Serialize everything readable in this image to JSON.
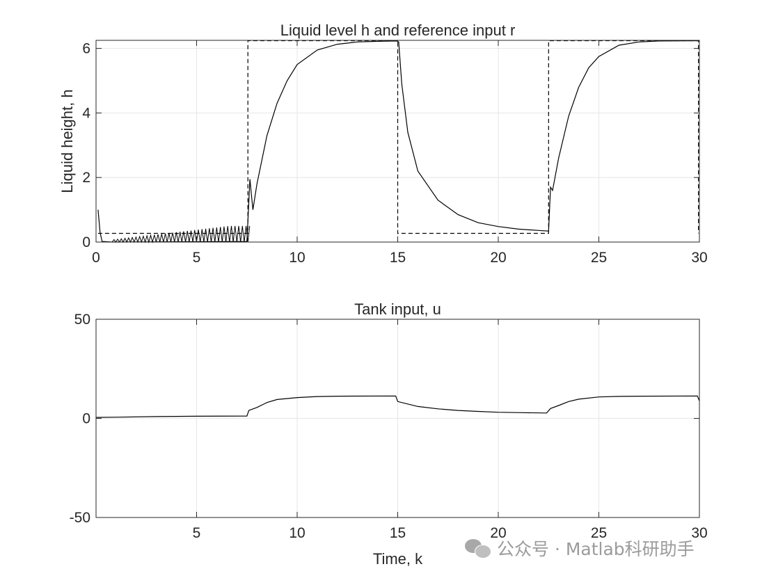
{
  "chart_data": [
    {
      "type": "line",
      "title": "Liquid level h and reference input r",
      "xlabel": "",
      "ylabel": "Liquid height, h",
      "xlim": [
        0,
        30
      ],
      "ylim": [
        0,
        6.25
      ],
      "xticks": [
        0,
        5,
        10,
        15,
        20,
        25,
        30
      ],
      "yticks": [
        0,
        2,
        4,
        6
      ],
      "grid": true,
      "series": [
        {
          "style": "solid",
          "color": "#000000",
          "points": [
            [
              0.1,
              1.0
            ],
            [
              0.2,
              0.3
            ],
            [
              0.3,
              0.02
            ],
            [
              0.8,
              0.0
            ],
            [
              7.5,
              0.02
            ],
            [
              7.65,
              1.95
            ],
            [
              7.8,
              1.0
            ],
            [
              8.0,
              1.8
            ],
            [
              8.5,
              3.3
            ],
            [
              9.0,
              4.3
            ],
            [
              9.5,
              5.0
            ],
            [
              10.0,
              5.5
            ],
            [
              11.0,
              5.95
            ],
            [
              12.0,
              6.13
            ],
            [
              13.0,
              6.2
            ],
            [
              14.0,
              6.22
            ],
            [
              14.95,
              6.23
            ],
            [
              15.05,
              6.2
            ],
            [
              15.2,
              4.9
            ],
            [
              15.5,
              3.4
            ],
            [
              16.0,
              2.2
            ],
            [
              17.0,
              1.3
            ],
            [
              18.0,
              0.85
            ],
            [
              19.0,
              0.6
            ],
            [
              20.0,
              0.48
            ],
            [
              21.0,
              0.4
            ],
            [
              22.0,
              0.36
            ],
            [
              22.5,
              0.34
            ],
            [
              22.6,
              1.7
            ],
            [
              22.7,
              1.6
            ],
            [
              23.0,
              2.6
            ],
            [
              23.5,
              3.9
            ],
            [
              24.0,
              4.8
            ],
            [
              24.5,
              5.4
            ],
            [
              25.0,
              5.75
            ],
            [
              26.0,
              6.1
            ],
            [
              27.0,
              6.2
            ],
            [
              28.0,
              6.23
            ],
            [
              30.0,
              6.24
            ]
          ]
        },
        {
          "style": "dashed",
          "color": "#000000",
          "points": [
            [
              0.1,
              0.27
            ],
            [
              7.55,
              0.27
            ],
            [
              7.55,
              6.24
            ],
            [
              15.0,
              6.24
            ],
            [
              15.0,
              0.27
            ],
            [
              22.5,
              0.27
            ],
            [
              22.5,
              6.24
            ],
            [
              29.95,
              6.24
            ],
            [
              29.95,
              0.27
            ]
          ]
        }
      ],
      "oscillation": {
        "x_range": [
          0.8,
          7.55
        ],
        "amplitude_max": 0.5,
        "count": 37
      }
    },
    {
      "type": "line",
      "title": "Tank input, u",
      "xlabel": "Time, k",
      "ylabel": "",
      "xlim": [
        0,
        30
      ],
      "ylim": [
        -50,
        50
      ],
      "xticks": [
        5,
        10,
        15,
        20,
        25,
        30
      ],
      "yticks": [
        -50,
        0,
        50
      ],
      "grid": true,
      "series": [
        {
          "style": "solid",
          "color": "#000000",
          "points": [
            [
              0.0,
              0.5
            ],
            [
              1.0,
              0.6
            ],
            [
              3.0,
              0.9
            ],
            [
              5.0,
              1.1
            ],
            [
              7.5,
              1.2
            ],
            [
              7.6,
              4.0
            ],
            [
              8.0,
              5.5
            ],
            [
              8.5,
              8.0
            ],
            [
              9.0,
              9.5
            ],
            [
              10.0,
              10.5
            ],
            [
              11.0,
              11.0
            ],
            [
              12.0,
              11.2
            ],
            [
              14.9,
              11.3
            ],
            [
              15.0,
              8.5
            ],
            [
              16.0,
              6.0
            ],
            [
              17.0,
              4.8
            ],
            [
              18.0,
              4.0
            ],
            [
              19.0,
              3.5
            ],
            [
              20.0,
              3.1
            ],
            [
              21.0,
              2.9
            ],
            [
              22.4,
              2.7
            ],
            [
              22.6,
              5.0
            ],
            [
              23.0,
              6.5
            ],
            [
              23.5,
              8.5
            ],
            [
              24.0,
              9.7
            ],
            [
              25.0,
              10.8
            ],
            [
              26.0,
              11.1
            ],
            [
              27.0,
              11.2
            ],
            [
              29.9,
              11.3
            ],
            [
              30.0,
              8.8
            ]
          ]
        }
      ]
    }
  ],
  "watermark": {
    "text": "公众号 · Matlab科研助手",
    "icon": "wechat-icon"
  }
}
